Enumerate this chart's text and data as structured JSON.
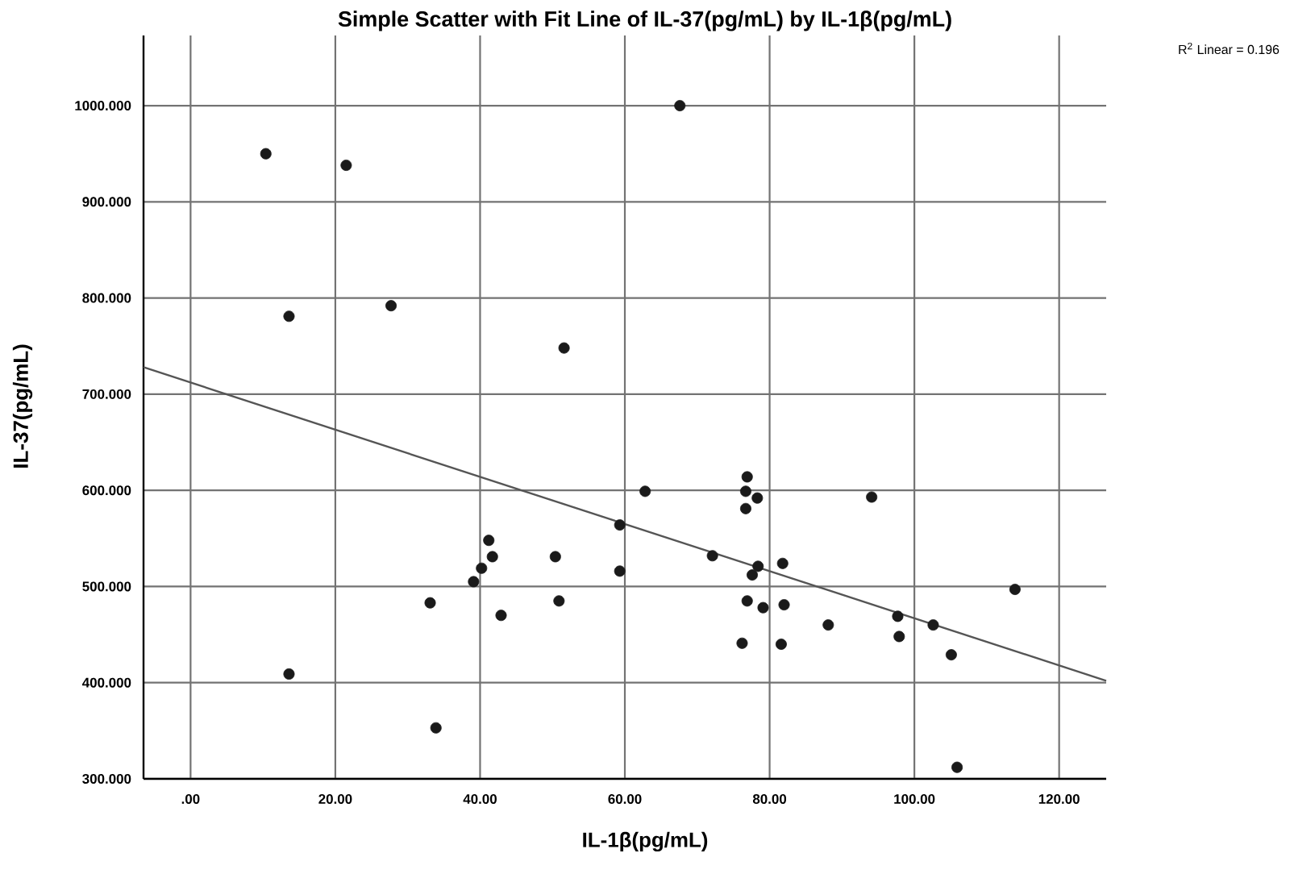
{
  "chart_data": {
    "type": "scatter",
    "title": "Simple Scatter with Fit Line of IL-37(pg/mL) by IL-1β(pg/mL)",
    "xlabel": "IL-1β(pg/mL)",
    "ylabel": "IL-37(pg/mL)",
    "annotations": [
      "R$^{2}$ Linear = 0.196"
    ],
    "xlim": [
      -6.5,
      126.5
    ],
    "ylim": [
      300,
      1073
    ],
    "xticks": [
      {
        "value": 0,
        "label": ".00"
      },
      {
        "value": 20,
        "label": "20.00"
      },
      {
        "value": 40,
        "label": "40.00"
      },
      {
        "value": 60,
        "label": "60.00"
      },
      {
        "value": 80,
        "label": "80.00"
      },
      {
        "value": 100,
        "label": "100.00"
      },
      {
        "value": 120,
        "label": "120.00"
      }
    ],
    "yticks": [
      {
        "value": 300,
        "label": "300.000"
      },
      {
        "value": 400,
        "label": "400.000"
      },
      {
        "value": 500,
        "label": "500.000"
      },
      {
        "value": 600,
        "label": "600.000"
      },
      {
        "value": 700,
        "label": "700.000"
      },
      {
        "value": 800,
        "label": "800.000"
      },
      {
        "value": 900,
        "label": "900.000"
      },
      {
        "value": 1000,
        "label": "1000.000"
      }
    ],
    "grid": true,
    "marker": "circle",
    "series": [
      {
        "color": "#1a1a1a",
        "x": [
          10.4,
          21.5,
          67.6,
          13.6,
          27.7,
          51.6,
          62.8,
          59.3,
          59.3,
          41.2,
          41.7,
          40.2,
          39.1,
          33.1,
          42.9,
          50.4,
          50.9,
          13.6,
          33.9,
          76.9,
          76.7,
          78.3,
          76.7,
          94.1,
          72.1,
          78.4,
          77.6,
          81.8,
          76.9,
          79.1,
          82.0,
          76.2,
          81.6,
          88.1,
          97.7,
          97.9,
          102.6,
          105.1,
          113.9,
          105.9
        ],
        "values": [
          950,
          938,
          1000,
          781,
          792,
          748,
          599,
          564,
          516,
          548,
          531,
          519,
          505,
          483,
          470,
          531,
          485,
          409,
          353,
          614,
          599,
          592,
          581,
          593,
          532,
          521,
          512,
          524,
          485,
          478,
          481,
          441,
          440,
          460,
          469,
          448,
          460,
          429,
          497,
          312
        ]
      },
      {
        "type": "line",
        "color": "#555555",
        "marker": "none",
        "line_style": "solid",
        "x": [
          -6.5,
          126.5
        ],
        "values": [
          728,
          402
        ]
      }
    ]
  }
}
